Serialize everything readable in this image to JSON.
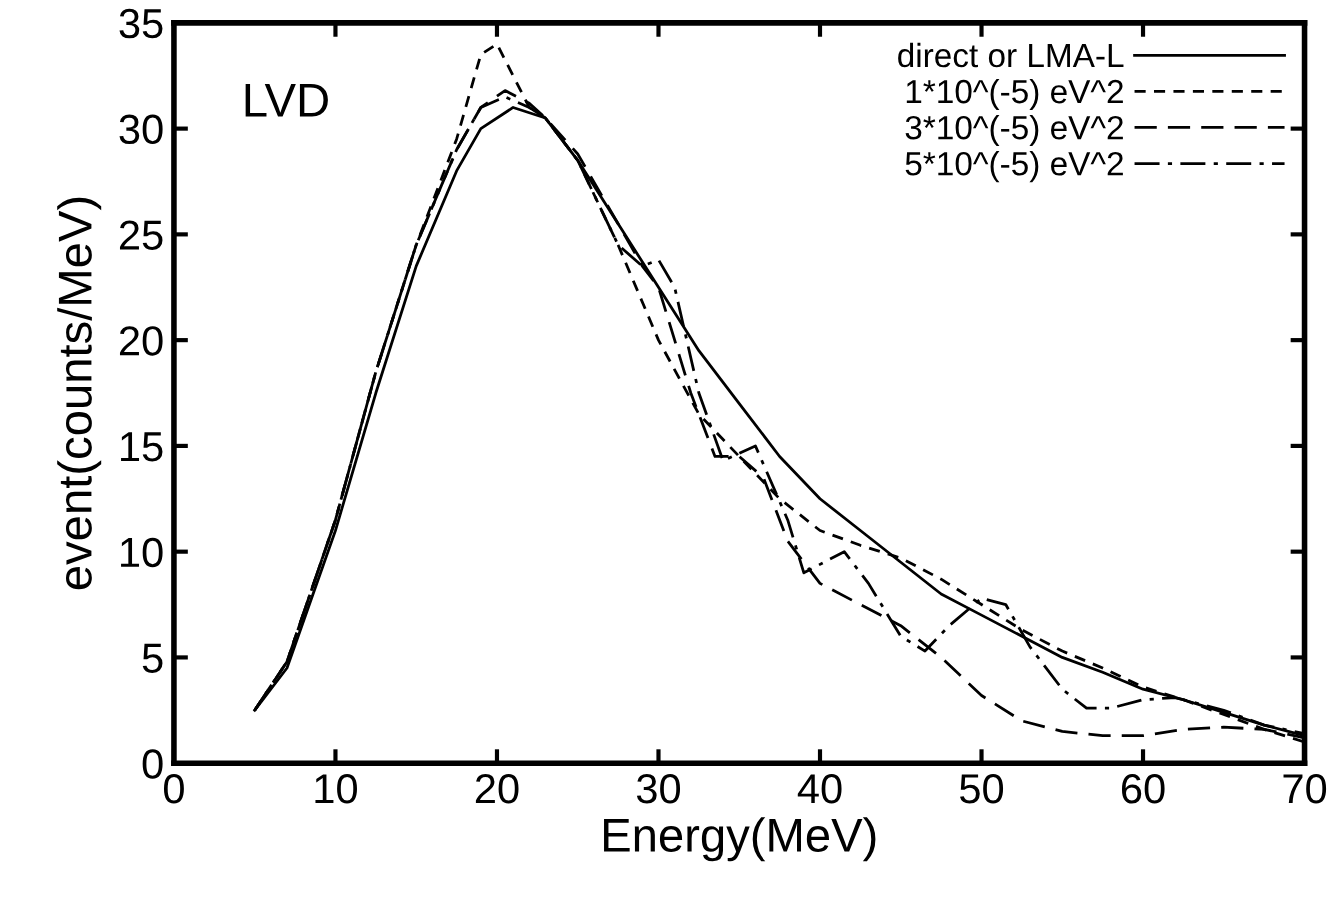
{
  "chart_data": {
    "type": "line",
    "xlabel": "Energy(MeV)",
    "ylabel": "event(counts/MeV)",
    "annotations": [
      "LVD"
    ],
    "xlim": [
      0,
      70
    ],
    "ylim": [
      0,
      35
    ],
    "xticks": [
      0,
      10,
      20,
      30,
      40,
      50,
      60,
      70
    ],
    "yticks": [
      0,
      5,
      10,
      15,
      20,
      25,
      30,
      35
    ],
    "grid": false,
    "legend": "top right",
    "marker": "none",
    "series": [
      {
        "name": "direct or LMA-L",
        "color": "#000000",
        "line_style": "solid",
        "x": [
          5,
          7,
          10,
          12.5,
          15,
          17.5,
          19,
          21,
          23,
          25,
          27.5,
          30,
          32.5,
          35,
          37.5,
          40,
          42.5,
          45,
          47.5,
          50,
          52.5,
          55,
          57.5,
          60,
          62.5,
          65,
          67.5,
          70
        ],
        "values": [
          2.5,
          4.5,
          11,
          17.5,
          23.5,
          28,
          30,
          31,
          30.5,
          28.5,
          25.5,
          22.5,
          19.5,
          17,
          14.5,
          12.5,
          11,
          9.5,
          8,
          7,
          6,
          5,
          4.3,
          3.5,
          3,
          2.4,
          1.8,
          1.3
        ]
      },
      {
        "name": "1*10^(-5) eV^2",
        "color": "#000000",
        "line_style": "dashed",
        "x": [
          5,
          7,
          10,
          12.5,
          15,
          17.5,
          19,
          20,
          21,
          22,
          23,
          25,
          27.5,
          30,
          32.5,
          35,
          37.5,
          40,
          42.5,
          45,
          47.5,
          50,
          52.5,
          55,
          57.5,
          60,
          62.5,
          65,
          67.5,
          70
        ],
        "values": [
          2.5,
          4.8,
          11.5,
          18.5,
          24.5,
          29.5,
          33.5,
          34,
          32.5,
          31,
          30.5,
          28.5,
          24.5,
          20,
          16.5,
          14.5,
          12.5,
          11,
          10.3,
          9.7,
          8.7,
          7.5,
          6.3,
          5.3,
          4.5,
          3.6,
          3,
          2.3,
          1.6,
          1
        ]
      },
      {
        "name": "3*10^(-5) eV^2",
        "color": "#000000",
        "line_style": "long dashed",
        "x": [
          5,
          7,
          10,
          12.5,
          15,
          17.5,
          19,
          20.5,
          22,
          23,
          25,
          27.5,
          29,
          30,
          32,
          33.5,
          35,
          36.5,
          38,
          40,
          42.5,
          45,
          47.5,
          50,
          52.5,
          55,
          57.5,
          60,
          62.5,
          65,
          67.5,
          70
        ],
        "values": [
          2.5,
          4.8,
          11.5,
          18.5,
          24.5,
          29,
          31,
          31.8,
          31.2,
          30.5,
          28.8,
          25.5,
          23.5,
          22.5,
          17.5,
          14.5,
          14.5,
          13.5,
          10.5,
          8.5,
          7.5,
          6.5,
          5,
          3.2,
          2,
          1.5,
          1.3,
          1.3,
          1.6,
          1.7,
          1.6,
          1.2
        ]
      },
      {
        "name": "5*10^(-5) eV^2",
        "color": "#000000",
        "line_style": "dash-dot",
        "x": [
          5,
          7,
          10,
          12.5,
          15,
          17.5,
          19,
          20.5,
          22,
          23,
          25,
          27.5,
          29,
          30,
          31,
          32.5,
          34,
          36,
          38,
          39,
          41.5,
          43,
          45,
          46.5,
          48,
          50,
          51.5,
          53,
          55,
          56.5,
          58,
          60,
          62,
          65,
          67.5,
          70
        ],
        "values": [
          2.5,
          4.8,
          11.5,
          18.5,
          24.5,
          29,
          31,
          31.5,
          31,
          30.5,
          28.5,
          24.5,
          23.5,
          23.8,
          22.5,
          17.5,
          14.3,
          15,
          11.5,
          9,
          10,
          8.5,
          6,
          5.3,
          6.5,
          7.8,
          7.5,
          5.5,
          3.5,
          2.6,
          2.6,
          3,
          3.1,
          2.5,
          1.8,
          1.4
        ]
      }
    ]
  }
}
